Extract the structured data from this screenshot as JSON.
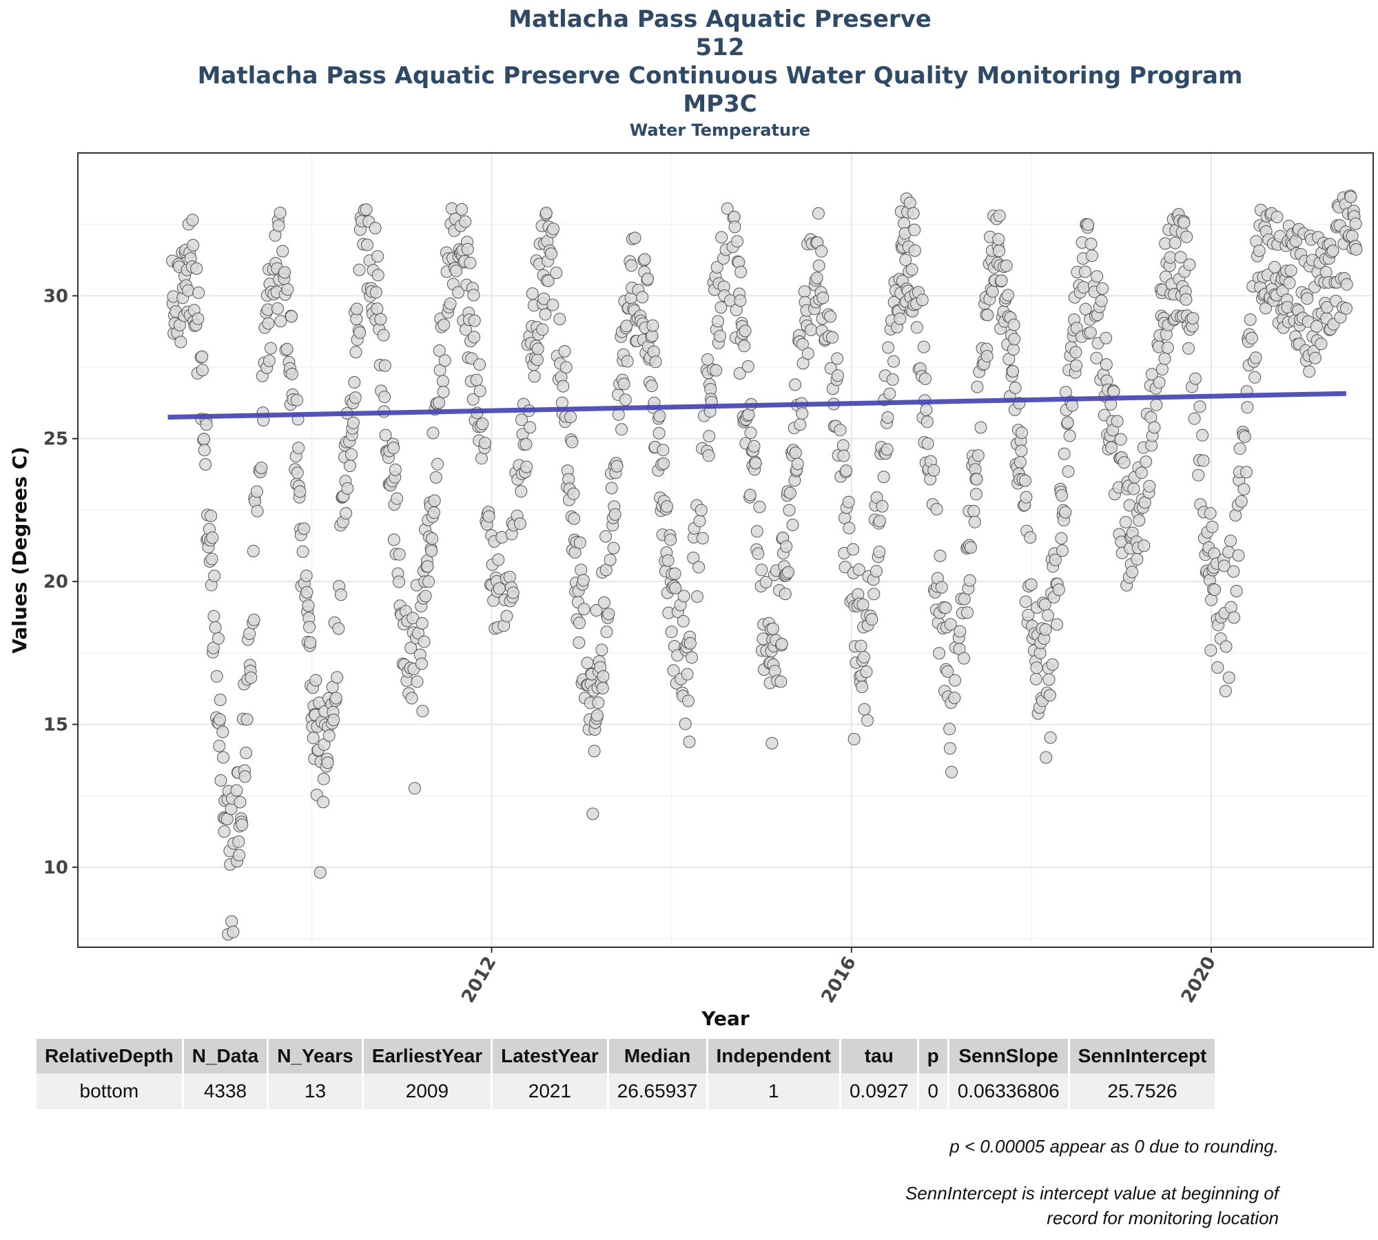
{
  "header": {
    "title_line1": "Matlacha Pass Aquatic Preserve",
    "title_line2": "512",
    "title_line3": "Matlacha Pass Aquatic Preserve Continuous Water Quality Monitoring Program",
    "title_line4": "MP3C",
    "subtitle": "Water Temperature"
  },
  "chart_data": {
    "type": "scatter",
    "xlabel": "Year",
    "ylabel": "Values (Degrees C)",
    "xlim": [
      2007.4,
      2021.8
    ],
    "ylim": [
      7.2,
      35.0
    ],
    "x_ticks": [
      2012,
      2016,
      2020
    ],
    "y_ticks": [
      10,
      15,
      20,
      25,
      30
    ],
    "grid": true,
    "point_color": "#d9d9d9",
    "point_edge_color": "#555555",
    "trend_color": "#4040b0",
    "trend_line": {
      "x": [
        2008.4,
        2021.5
      ],
      "y": [
        25.75,
        26.58
      ]
    },
    "annual_cycle": [
      {
        "year": 2008,
        "summer_max": 32.6,
        "winter_min": 20.6
      },
      {
        "year": 2009,
        "summer_max": 32.6,
        "winter_min": 7.9
      },
      {
        "year": 2010,
        "summer_max": 32.8,
        "winter_min": 10.5
      },
      {
        "year": 2011,
        "summer_max": 32.9,
        "winter_min": 14.1
      },
      {
        "year": 2012,
        "summer_max": 32.6,
        "winter_min": 16.0
      },
      {
        "year": 2013,
        "summer_max": 31.9,
        "winter_min": 13.3
      },
      {
        "year": 2014,
        "summer_max": 32.9,
        "winter_min": 14.1
      },
      {
        "year": 2015,
        "summer_max": 32.6,
        "winter_min": 14.6
      },
      {
        "year": 2016,
        "summer_max": 33.1,
        "winter_min": 14.9
      },
      {
        "year": 2017,
        "summer_max": 32.5,
        "winter_min": 12.9
      },
      {
        "year": 2018,
        "summer_max": 32.2,
        "winter_min": 13.7
      },
      {
        "year": 2019,
        "summer_max": 32.7,
        "winter_min": 18.3
      },
      {
        "year": 2020,
        "summer_max": 32.7,
        "winter_min": 15.2
      },
      {
        "year": 2021,
        "summer_max": 33.2,
        "winter_min": 26.5
      }
    ]
  },
  "stats_table": {
    "headers": [
      "RelativeDepth",
      "N_Data",
      "N_Years",
      "EarliestYear",
      "LatestYear",
      "Median",
      "Independent",
      "tau",
      "p",
      "SennSlope",
      "SennIntercept"
    ],
    "row": [
      "bottom",
      "4338",
      "13",
      "2009",
      "2021",
      "26.65937",
      "1",
      "0.0927",
      "0",
      "0.06336806",
      "25.7526"
    ]
  },
  "notes": {
    "rounding": "p < 0.00005 appear as 0 due to rounding.",
    "intercept_line1": "SennIntercept is intercept value at beginning of",
    "intercept_line2": "record for monitoring location"
  }
}
